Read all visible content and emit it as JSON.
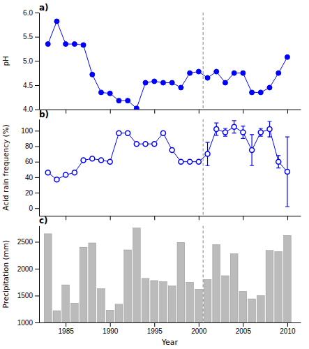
{
  "chart_data": [
    {
      "type": "line",
      "title": "a)",
      "y_label": "pH",
      "x": [
        1983,
        1984,
        1985,
        1986,
        1987,
        1988,
        1989,
        1990,
        1991,
        1992,
        1993,
        1994,
        1995,
        1996,
        1997,
        1998,
        1999,
        2000,
        2001,
        2002,
        2003,
        2004,
        2005,
        2006,
        2007,
        2008,
        2009,
        2010
      ],
      "values": [
        5.35,
        5.82,
        5.35,
        5.35,
        5.33,
        4.72,
        4.35,
        4.33,
        4.18,
        4.18,
        4.02,
        4.55,
        4.58,
        4.55,
        4.55,
        4.45,
        4.75,
        4.78,
        4.65,
        4.78,
        4.55,
        4.75,
        4.75,
        4.35,
        4.35,
        4.45,
        4.75,
        5.08
      ],
      "color": "#0000FF",
      "marker": "circle",
      "vline": 2000.5,
      "xlim": [
        1982.0,
        2011.5
      ],
      "xticks": [
        1985,
        1990,
        1995,
        2000,
        2005,
        2010
      ],
      "ylim": [
        4.0,
        6.0
      ],
      "yticks": [
        {
          "value": 4.0,
          "label": "4.0"
        },
        4.5,
        {
          "value": 5.0,
          "label": "5.0"
        },
        5.5,
        {
          "value": 6.0,
          "label": "6.0"
        }
      ],
      "tick_labels": "y",
      "grid": false
    },
    {
      "type": "line",
      "title": "b)",
      "y_label": "Acid rain frequency (%)",
      "x": [
        1983,
        1984,
        1985,
        1986,
        1987,
        1988,
        1989,
        1990,
        1991,
        1992,
        1993,
        1994,
        1995,
        1996,
        1997,
        1998,
        1999,
        2000,
        2001,
        2002,
        2003,
        2004,
        2005,
        2006,
        2007,
        2008,
        2009,
        2010
      ],
      "values": [
        46,
        37,
        43,
        46,
        62,
        64,
        62,
        60,
        97,
        97,
        83,
        83,
        83,
        97,
        75,
        60,
        60,
        60,
        70,
        102,
        98,
        105,
        98,
        75,
        98,
        102,
        60,
        47
      ],
      "errors": [
        null,
        null,
        null,
        null,
        null,
        null,
        null,
        null,
        null,
        null,
        null,
        null,
        null,
        null,
        null,
        null,
        null,
        null,
        15,
        8,
        5,
        8,
        8,
        20,
        5,
        10,
        8,
        45
      ],
      "color": "#0000FF",
      "marker": "circle-open",
      "vline": 2000.5,
      "xlim": [
        1982.0,
        2011.5
      ],
      "xticks": [
        1985,
        1990,
        1995,
        2000,
        2005,
        2010
      ],
      "ylim": [
        -10,
        115
      ],
      "yticks": [
        0,
        20,
        40,
        60,
        80,
        100
      ],
      "tick_labels": "y",
      "grid": false
    },
    {
      "type": "bar",
      "title": "c)",
      "x_label": "Year",
      "y_label": "Precipitation (mm)",
      "x": [
        1983,
        1984,
        1985,
        1986,
        1987,
        1988,
        1989,
        1990,
        1991,
        1992,
        1993,
        1994,
        1995,
        1996,
        1997,
        1998,
        1999,
        2000,
        2001,
        2002,
        2003,
        2004,
        2005,
        2006,
        2007,
        2008,
        2009,
        2010
      ],
      "values": [
        2650,
        1220,
        1700,
        1360,
        2400,
        2480,
        1630,
        1230,
        1340,
        2350,
        2760,
        1820,
        1780,
        1760,
        1680,
        2490,
        1750,
        1620,
        1800,
        2450,
        1870,
        2280,
        1580,
        1440,
        1500,
        2340,
        2320,
        2620
      ],
      "color": "#BBBBBB",
      "vline": 2000.5,
      "xlim": [
        1982.0,
        2011.5
      ],
      "xticks": [
        1985,
        1990,
        1995,
        2000,
        2005,
        2010
      ],
      "ylim": [
        1000,
        2800
      ],
      "yticks": [
        1000,
        1500,
        2000,
        2500
      ],
      "grid": false
    }
  ]
}
